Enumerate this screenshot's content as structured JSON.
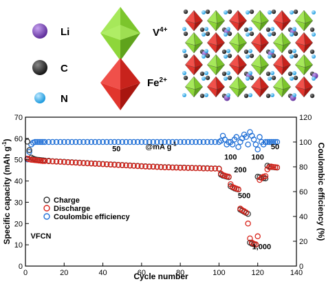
{
  "structure_legend": {
    "items": [
      {
        "label": "Li",
        "color": "#7a3fb8"
      },
      {
        "label": "C",
        "color": "#222222"
      },
      {
        "label": "N",
        "color": "#2aa6ea"
      }
    ],
    "v_label": "V",
    "v_sup": "4+",
    "v_color": "#8ed63a",
    "fe_label": "Fe",
    "fe_sup": "2+",
    "fe_color": "#e1352d"
  },
  "colors": {
    "charge_edge": "#333333",
    "discharge_edge": "#d8231a",
    "ce_edge": "#1f6fd6",
    "axis": "#000000"
  },
  "chart_data": {
    "type": "scatter",
    "xlabel": "Cycle number",
    "ylabel": "Specific capacity (mAh g",
    "ylabel_sup": "-1",
    "ylabel_end": ")",
    "y2label": "Coulombic efficiency (%)",
    "xlim": [
      0,
      140
    ],
    "ylim": [
      0,
      70
    ],
    "y2lim": [
      0,
      120
    ],
    "xticks": [
      0,
      20,
      40,
      60,
      80,
      100,
      120,
      140
    ],
    "yticks": [
      0,
      10,
      20,
      30,
      40,
      50,
      60,
      70
    ],
    "y2ticks": [
      0,
      20,
      40,
      60,
      80,
      100,
      120
    ],
    "legend": {
      "placement": "center-left",
      "entries": [
        "Charge",
        "Discharge",
        "Coulombic efficiency"
      ]
    },
    "annotations": [
      {
        "text": "@mA g",
        "sup": "-1",
        "x": 70,
        "y": 55
      },
      {
        "text": "50",
        "x": 47,
        "y": 54
      },
      {
        "text": "100",
        "x": 106,
        "y": 50
      },
      {
        "text": "200",
        "x": 111,
        "y": 44
      },
      {
        "text": "500",
        "x": 113,
        "y": 32
      },
      {
        "text": "1,000",
        "x": 122,
        "y": 8
      },
      {
        "text": "100",
        "x": 120,
        "y": 50
      },
      {
        "text": "50",
        "x": 129,
        "y": 55
      },
      {
        "text": "VFCN",
        "x": 8,
        "y": 13
      }
    ],
    "series": [
      {
        "name": "Charge",
        "axis": "left",
        "x": [
          1,
          2,
          3,
          4,
          5,
          6,
          7,
          8,
          9,
          10,
          12,
          14,
          16,
          18,
          20,
          22,
          24,
          26,
          28,
          30,
          32,
          34,
          36,
          38,
          40,
          42,
          44,
          46,
          48,
          50,
          52,
          54,
          56,
          58,
          60,
          62,
          64,
          66,
          68,
          70,
          72,
          74,
          76,
          78,
          80,
          82,
          84,
          86,
          88,
          90,
          92,
          94,
          96,
          98,
          100,
          101,
          102,
          103,
          104,
          105,
          106,
          107,
          108,
          109,
          110,
          111,
          112,
          113,
          114,
          115,
          116,
          117,
          118,
          119,
          120,
          121,
          122,
          123,
          124,
          125,
          126,
          127,
          128,
          129,
          130
        ],
        "y": [
          58.5,
          54.5,
          51.0,
          50.5,
          50.2,
          50.0,
          49.9,
          49.8,
          49.7,
          49.6,
          49.5,
          49.3,
          49.2,
          49.1,
          49.0,
          48.9,
          48.8,
          48.7,
          48.6,
          48.5,
          48.4,
          48.3,
          48.2,
          48.1,
          48.0,
          47.9,
          47.8,
          47.7,
          47.6,
          47.5,
          47.4,
          47.3,
          47.2,
          47.1,
          47.0,
          46.9,
          46.8,
          46.8,
          46.7,
          46.6,
          46.5,
          46.5,
          46.4,
          46.4,
          46.3,
          46.3,
          46.2,
          46.2,
          46.1,
          46.1,
          46.0,
          46.0,
          45.9,
          45.9,
          45.8,
          43.0,
          42.5,
          42.3,
          42.0,
          41.8,
          37.5,
          37.0,
          36.5,
          36.2,
          36.0,
          26.5,
          26.0,
          25.5,
          25.0,
          24.5,
          11.0,
          10.5,
          10.2,
          10.0,
          42.0,
          41.8,
          41.5,
          41.3,
          41.2,
          47.2,
          46.8,
          46.6,
          46.5,
          46.4,
          46.3
        ]
      },
      {
        "name": "Discharge",
        "axis": "left",
        "x": [
          1,
          2,
          3,
          4,
          5,
          6,
          7,
          8,
          9,
          10,
          12,
          14,
          16,
          18,
          20,
          22,
          24,
          26,
          28,
          30,
          32,
          34,
          36,
          38,
          40,
          42,
          44,
          46,
          48,
          50,
          52,
          54,
          56,
          58,
          60,
          62,
          64,
          66,
          68,
          70,
          72,
          74,
          76,
          78,
          80,
          82,
          84,
          86,
          88,
          90,
          92,
          94,
          96,
          98,
          100,
          101,
          102,
          103,
          104,
          105,
          106,
          107,
          108,
          109,
          110,
          111,
          112,
          113,
          114,
          115,
          116,
          117,
          118,
          119,
          120,
          121,
          122,
          123,
          124,
          125,
          126,
          127,
          128,
          129,
          130
        ],
        "y": [
          50.5,
          50.2,
          50.0,
          49.9,
          49.8,
          49.7,
          49.6,
          49.5,
          49.4,
          49.4,
          49.3,
          49.2,
          49.1,
          49.0,
          48.9,
          48.8,
          48.7,
          48.6,
          48.5,
          48.4,
          48.3,
          48.2,
          48.1,
          48.0,
          47.9,
          47.8,
          47.7,
          47.6,
          47.5,
          47.4,
          47.3,
          47.2,
          47.1,
          47.0,
          46.9,
          46.8,
          46.7,
          46.7,
          46.6,
          46.5,
          46.4,
          46.4,
          46.3,
          46.3,
          46.2,
          46.2,
          46.1,
          46.1,
          46.0,
          46.0,
          45.9,
          45.9,
          45.8,
          45.8,
          45.7,
          43.5,
          42.8,
          42.5,
          42.2,
          42.0,
          38.5,
          37.2,
          36.8,
          36.4,
          36.1,
          27.0,
          26.3,
          25.8,
          25.2,
          20.0,
          13.0,
          11.0,
          10.5,
          10.2,
          14.0,
          40.5,
          41.5,
          42.0,
          42.3,
          45.5,
          46.5,
          46.8,
          46.6,
          46.5,
          46.4
        ]
      },
      {
        "name": "Coulombic efficiency",
        "axis": "right",
        "x": [
          1,
          2,
          3,
          4,
          5,
          6,
          7,
          8,
          9,
          10,
          12,
          14,
          16,
          18,
          20,
          22,
          24,
          26,
          28,
          30,
          32,
          34,
          36,
          38,
          40,
          42,
          44,
          46,
          48,
          50,
          52,
          54,
          56,
          58,
          60,
          62,
          64,
          66,
          68,
          70,
          72,
          74,
          76,
          78,
          80,
          82,
          84,
          86,
          88,
          90,
          92,
          94,
          96,
          98,
          100,
          101,
          102,
          103,
          104,
          105,
          106,
          107,
          108,
          109,
          110,
          111,
          112,
          113,
          114,
          115,
          116,
          117,
          118,
          119,
          120,
          121,
          122,
          123,
          124,
          125,
          126,
          127,
          128,
          129,
          130
        ],
        "y": [
          86,
          92,
          98,
          99.5,
          100,
          100,
          100,
          100,
          100,
          100,
          100,
          100,
          100,
          100,
          100,
          100,
          100,
          100,
          100,
          100,
          100,
          100,
          100,
          100,
          100,
          100,
          100,
          100,
          100,
          100,
          100,
          100,
          100,
          100,
          100,
          100,
          100,
          100,
          100,
          100,
          100,
          100,
          100,
          100,
          100,
          100,
          100,
          100,
          100,
          100,
          100,
          100,
          100,
          100,
          100,
          101,
          105,
          102,
          98,
          100,
          100,
          98,
          102,
          104,
          96,
          100,
          103,
          106,
          104,
          98,
          108,
          105,
          102,
          98,
          94,
          104,
          100,
          98,
          100,
          100,
          100,
          100,
          100,
          100,
          100
        ]
      }
    ]
  }
}
